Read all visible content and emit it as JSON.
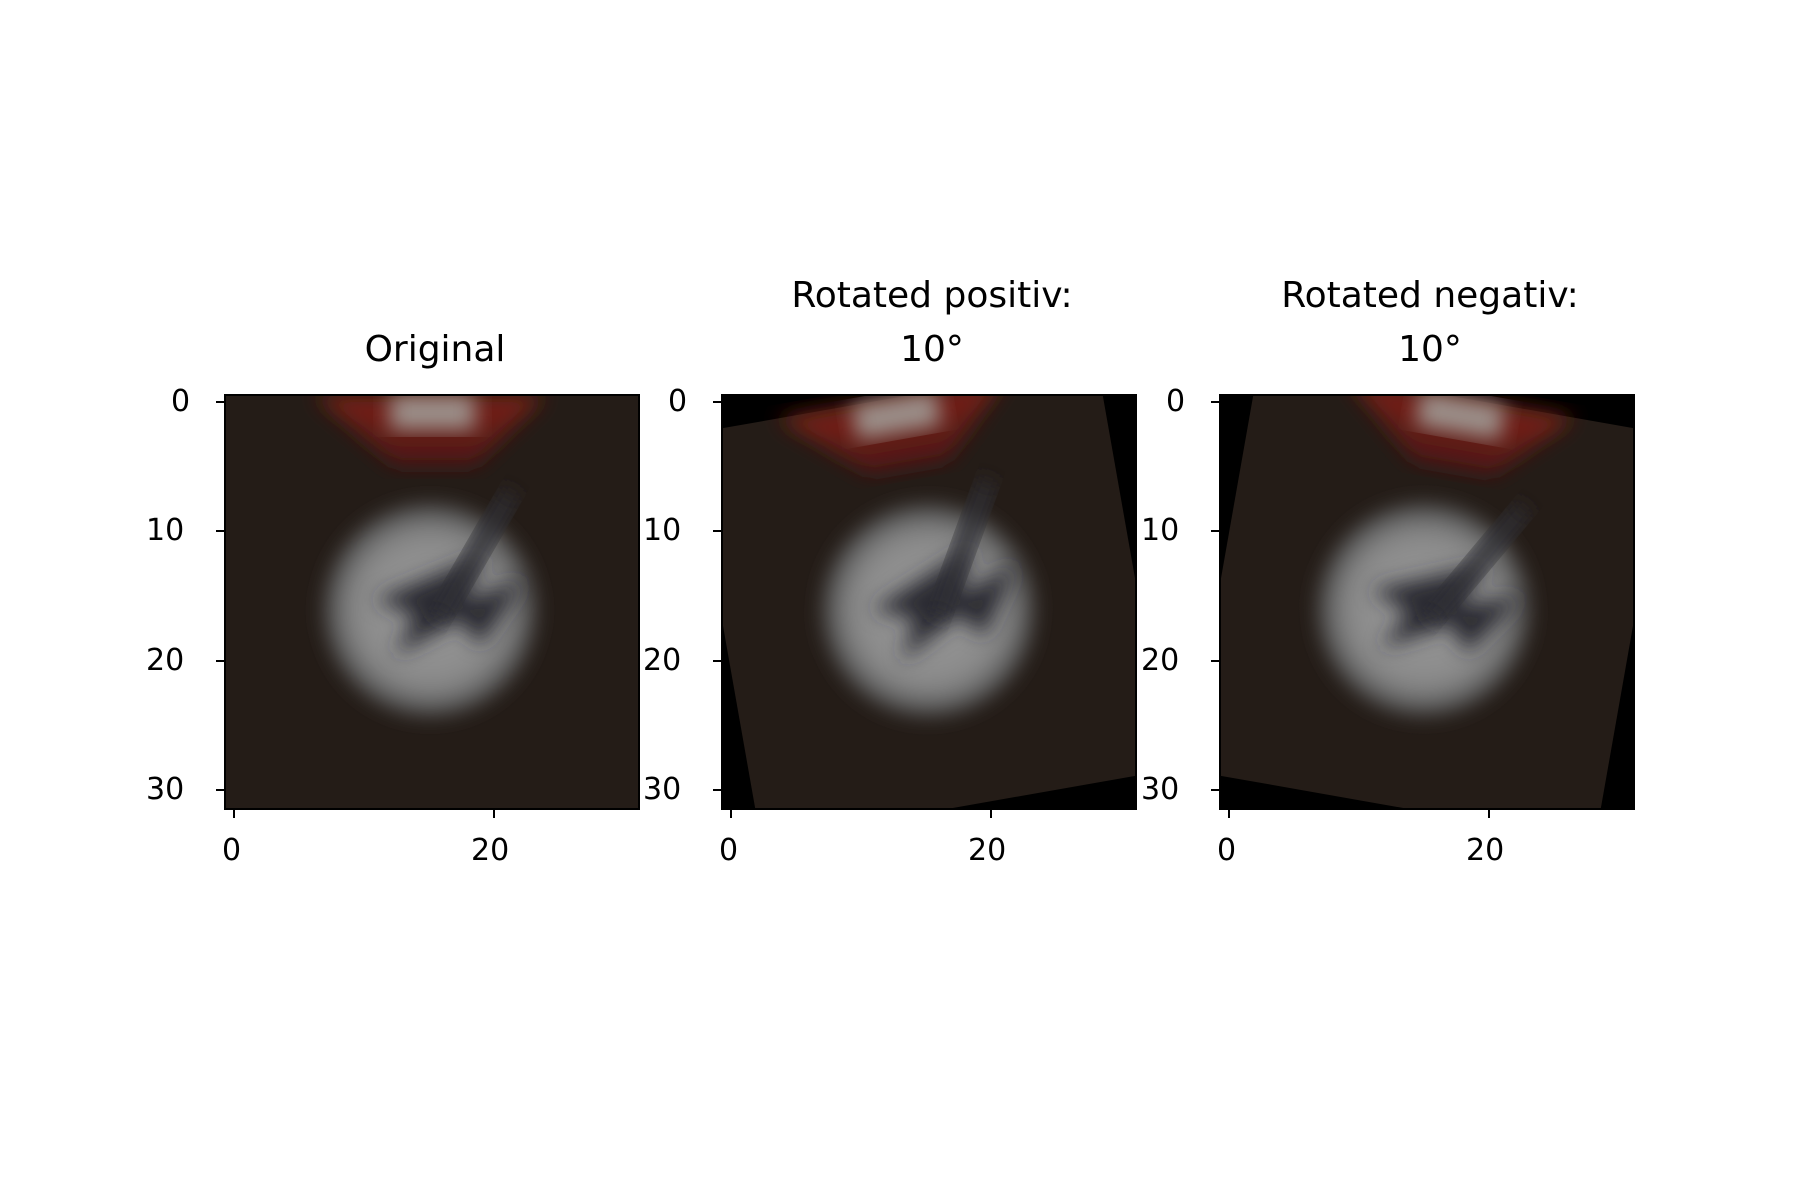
{
  "figure": {
    "panels": [
      {
        "title_line1": "Original",
        "title_line2": "",
        "xticks": [
          "0",
          "20"
        ],
        "yticks": [
          "0",
          "10",
          "20",
          "30"
        ],
        "content": "traffic-sign-image",
        "rotation_deg": 0
      },
      {
        "title_line1": "Rotated positiv:",
        "title_line2": "10°",
        "xticks": [
          "0",
          "20"
        ],
        "yticks": [
          "0",
          "10",
          "20",
          "30"
        ],
        "content": "traffic-sign-image",
        "rotation_deg": -10
      },
      {
        "title_line1": "Rotated negativ:",
        "title_line2": "10°",
        "xticks": [
          "0",
          "20"
        ],
        "yticks": [
          "0",
          "10",
          "20",
          "30"
        ],
        "content": "traffic-sign-image",
        "rotation_deg": 10
      }
    ],
    "colors": {
      "image_background": "#241c17",
      "sign_face": "#8c8c8c",
      "sign_red": "#6d1c16",
      "arrow_dark": "#2c2c33",
      "padding_black": "#000000"
    }
  }
}
